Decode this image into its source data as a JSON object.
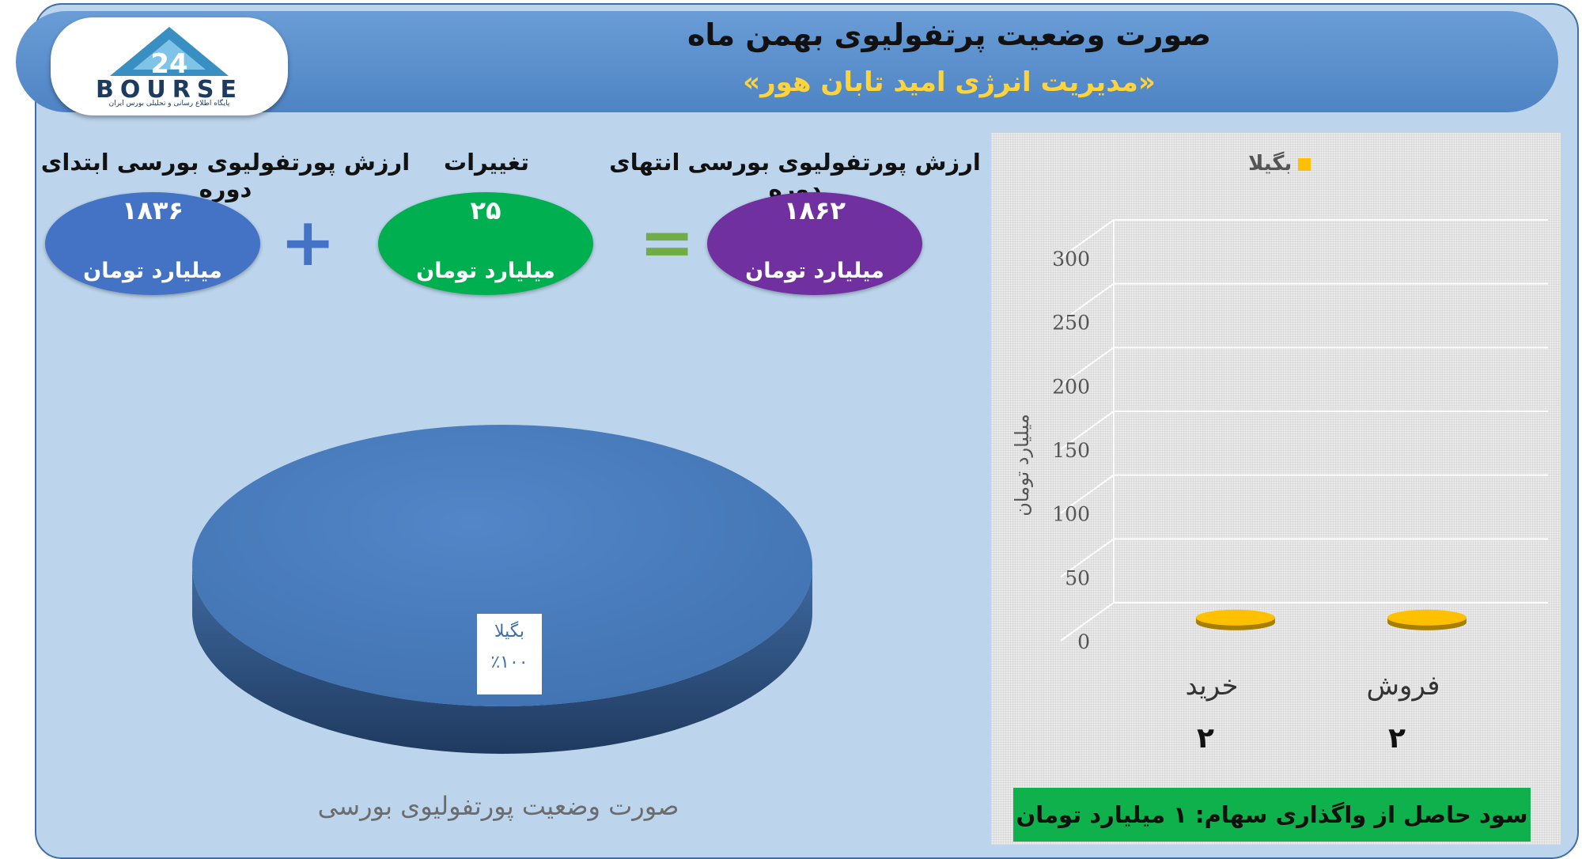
{
  "header": {
    "title": "صورت وضعیت پرتفولیوی بهمن ماه",
    "subtitle": "«مدیریت انرژی امید تابان هور»"
  },
  "logo": {
    "word": "BOURSE",
    "numeral": "24",
    "tagline": "پایگاه اطلاع رسانی و تحلیلی بورس ایران"
  },
  "metrics": {
    "start": {
      "label": "ارزش پورتفولیوی بورسی ابتدای دوره",
      "value": "۱۸۳۶",
      "unit": "میلیارد تومان"
    },
    "change": {
      "label": "تغییرات",
      "value": "۲۵",
      "unit": "میلیارد تومان"
    },
    "end": {
      "label": "ارزش پورتفولیوی بورسی انتهای دوره",
      "value": "۱۸۶۲",
      "unit": "میلیارد تومان"
    },
    "plus_symbol": "+",
    "equals_symbol": "="
  },
  "pie": {
    "slice_label": "بگیلا",
    "slice_percent": "٪۱۰۰",
    "caption": "صورت وضعیت پورتفولیوی بورسی"
  },
  "profit": {
    "text": "سود حاصل از واگذاری سهام: ۱ میلیارد تومان"
  },
  "colors": {
    "start_bubble": "#4472c4",
    "change_bubble": "#00b050",
    "end_bubble": "#7030a0",
    "plus": "#4472c4",
    "equals": "#70ad47",
    "series": "#ffc000",
    "pie": "#4a7ebf",
    "profit_bar": "#0fb14c"
  },
  "chart_data": [
    {
      "type": "pie",
      "slices": [
        {
          "label": "بگیلا",
          "value": 100,
          "percent_label": "٪۱۰۰"
        }
      ],
      "caption": "صورت وضعیت پورتفولیوی بورسی"
    },
    {
      "type": "bar",
      "categories": [
        "خرید",
        "فروش"
      ],
      "category_values_text": [
        "۲",
        "۲"
      ],
      "series": [
        {
          "name": "بگیلا",
          "values": [
            2,
            2
          ]
        }
      ],
      "ylabel": "میلیارد تومان",
      "ylim": [
        0,
        300
      ],
      "yticks": [
        0,
        50,
        100,
        150,
        200,
        250,
        300
      ],
      "legend": "top",
      "grid": true
    }
  ]
}
